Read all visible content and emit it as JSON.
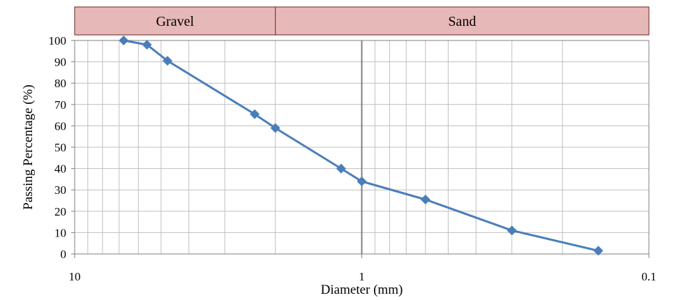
{
  "chart_data": {
    "type": "line",
    "xlabel": "Diameter (mm)",
    "ylabel": "Passing Percentage (%)",
    "x_scale": "log",
    "x_reversed": true,
    "xlim": [
      10,
      0.1
    ],
    "ylim": [
      0,
      100
    ],
    "x_ticks": [
      "10",
      "1",
      "0.1"
    ],
    "y_ticks": [
      "0",
      "10",
      "20",
      "30",
      "40",
      "50",
      "60",
      "70",
      "80",
      "90",
      "100"
    ],
    "grid": true,
    "legend": "none",
    "bands": [
      {
        "label": "Gravel",
        "from": 10,
        "to": 2
      },
      {
        "label": "Sand",
        "from": 2,
        "to": 0.1
      }
    ],
    "series": [
      {
        "color": "#4a7ebb",
        "marker": "diamond",
        "x": [
          6.75,
          5.6,
          4.75,
          2.36,
          2.0,
          1.18,
          1.0,
          0.6,
          0.3,
          0.15
        ],
        "y": [
          100,
          98,
          90.5,
          65.5,
          59,
          40,
          34,
          25.5,
          11,
          1.5
        ]
      }
    ],
    "colors": {
      "band_fill": "#e6b8b7",
      "band_border": "#7f3f3f",
      "grid": "#bfbfbf",
      "gravel_sand_divider": "#7f7f7f"
    }
  }
}
